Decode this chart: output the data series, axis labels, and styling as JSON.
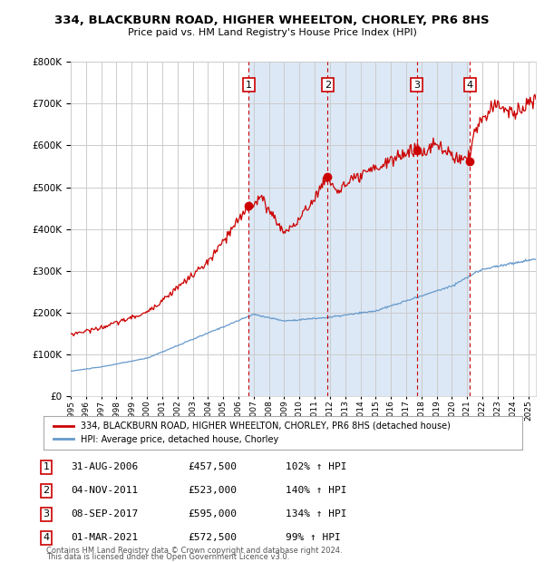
{
  "title1": "334, BLACKBURN ROAD, HIGHER WHEELTON, CHORLEY, PR6 8HS",
  "title2": "Price paid vs. HM Land Registry's House Price Index (HPI)",
  "legend_label_red": "334, BLACKBURN ROAD, HIGHER WHEELTON, CHORLEY, PR6 8HS (detached house)",
  "legend_label_blue": "HPI: Average price, detached house, Chorley",
  "transactions": [
    {
      "num": 1,
      "date_label": "31-AUG-2006",
      "price": 457500,
      "pct": "102%",
      "year_x": 2006.67
    },
    {
      "num": 2,
      "date_label": "04-NOV-2011",
      "price": 523000,
      "pct": "140%",
      "year_x": 2011.84
    },
    {
      "num": 3,
      "date_label": "08-SEP-2017",
      "price": 595000,
      "pct": "134%",
      "year_x": 2017.69
    },
    {
      "num": 4,
      "date_label": "01-MAR-2021",
      "price": 572500,
      "pct": "99%",
      "year_x": 2021.17
    }
  ],
  "footnote1": "Contains HM Land Registry data © Crown copyright and database right 2024.",
  "footnote2": "This data is licensed under the Open Government Licence v3.0.",
  "xmin": 1995.0,
  "xmax": 2025.5,
  "ymin": 0,
  "ymax": 800000,
  "bg_color": "#dce8f5",
  "plot_bg": "#ffffff",
  "grid_color": "#cccccc",
  "red_color": "#cc0000",
  "blue_color": "#6699cc",
  "dashed_color": "#cc0000",
  "shade_color": "#dce8f5"
}
